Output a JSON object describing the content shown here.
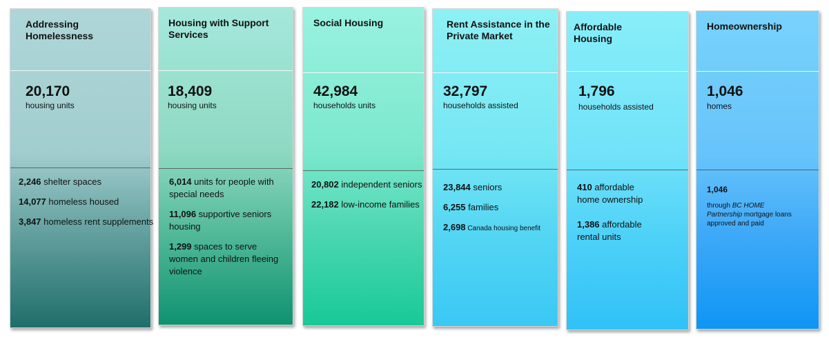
{
  "columns": [
    {
      "title": "Addressing Homelessness",
      "big_number": "20,170",
      "unit": "housing units",
      "items": [
        {
          "num": "2,246",
          "text": " shelter spaces"
        },
        {
          "num": "14,077",
          "text": " homeless housed"
        },
        {
          "num": "3,847",
          "text": " homeless rent supplements"
        }
      ]
    },
    {
      "title": "Housing with Support Services",
      "big_number": "18,409",
      "unit": "housing units",
      "items": [
        {
          "num": "6,014",
          "text": " units for people with special needs"
        },
        {
          "num": "11,096",
          "text": " supportive seniors housing"
        },
        {
          "num": "1,299",
          "text": " spaces to serve women and children fleeing violence"
        }
      ]
    },
    {
      "title": "Social Housing",
      "big_number": "42,984",
      "unit": "households units",
      "items": [
        {
          "num": "20,802",
          "text": " independent seniors"
        },
        {
          "num": "22,182",
          "text": " low-income families"
        }
      ]
    },
    {
      "title": "Rent Assistance in the Private Market",
      "big_number": "32,797",
      "unit": "households assisted",
      "items": [
        {
          "num": "23,844",
          "text": " seniors"
        },
        {
          "num": "6,255",
          "text": " families"
        },
        {
          "num": "2,698",
          "text": " Canada housing benefit"
        }
      ]
    },
    {
      "title": "Affordable Housing",
      "big_number": "1,796",
      "unit": "households assisted",
      "items": [
        {
          "num": "410",
          "text": " affordable home ownership"
        },
        {
          "num": "1,386",
          "text": " affordable rental units"
        }
      ]
    },
    {
      "title": "Homeownership",
      "big_number": "1,046",
      "unit": "homes",
      "detail_number": "1,046",
      "detail_prefix": "through ",
      "detail_italic": "BC HOME Partnership",
      "detail_suffix": " mortgage loans approved and paid"
    }
  ]
}
